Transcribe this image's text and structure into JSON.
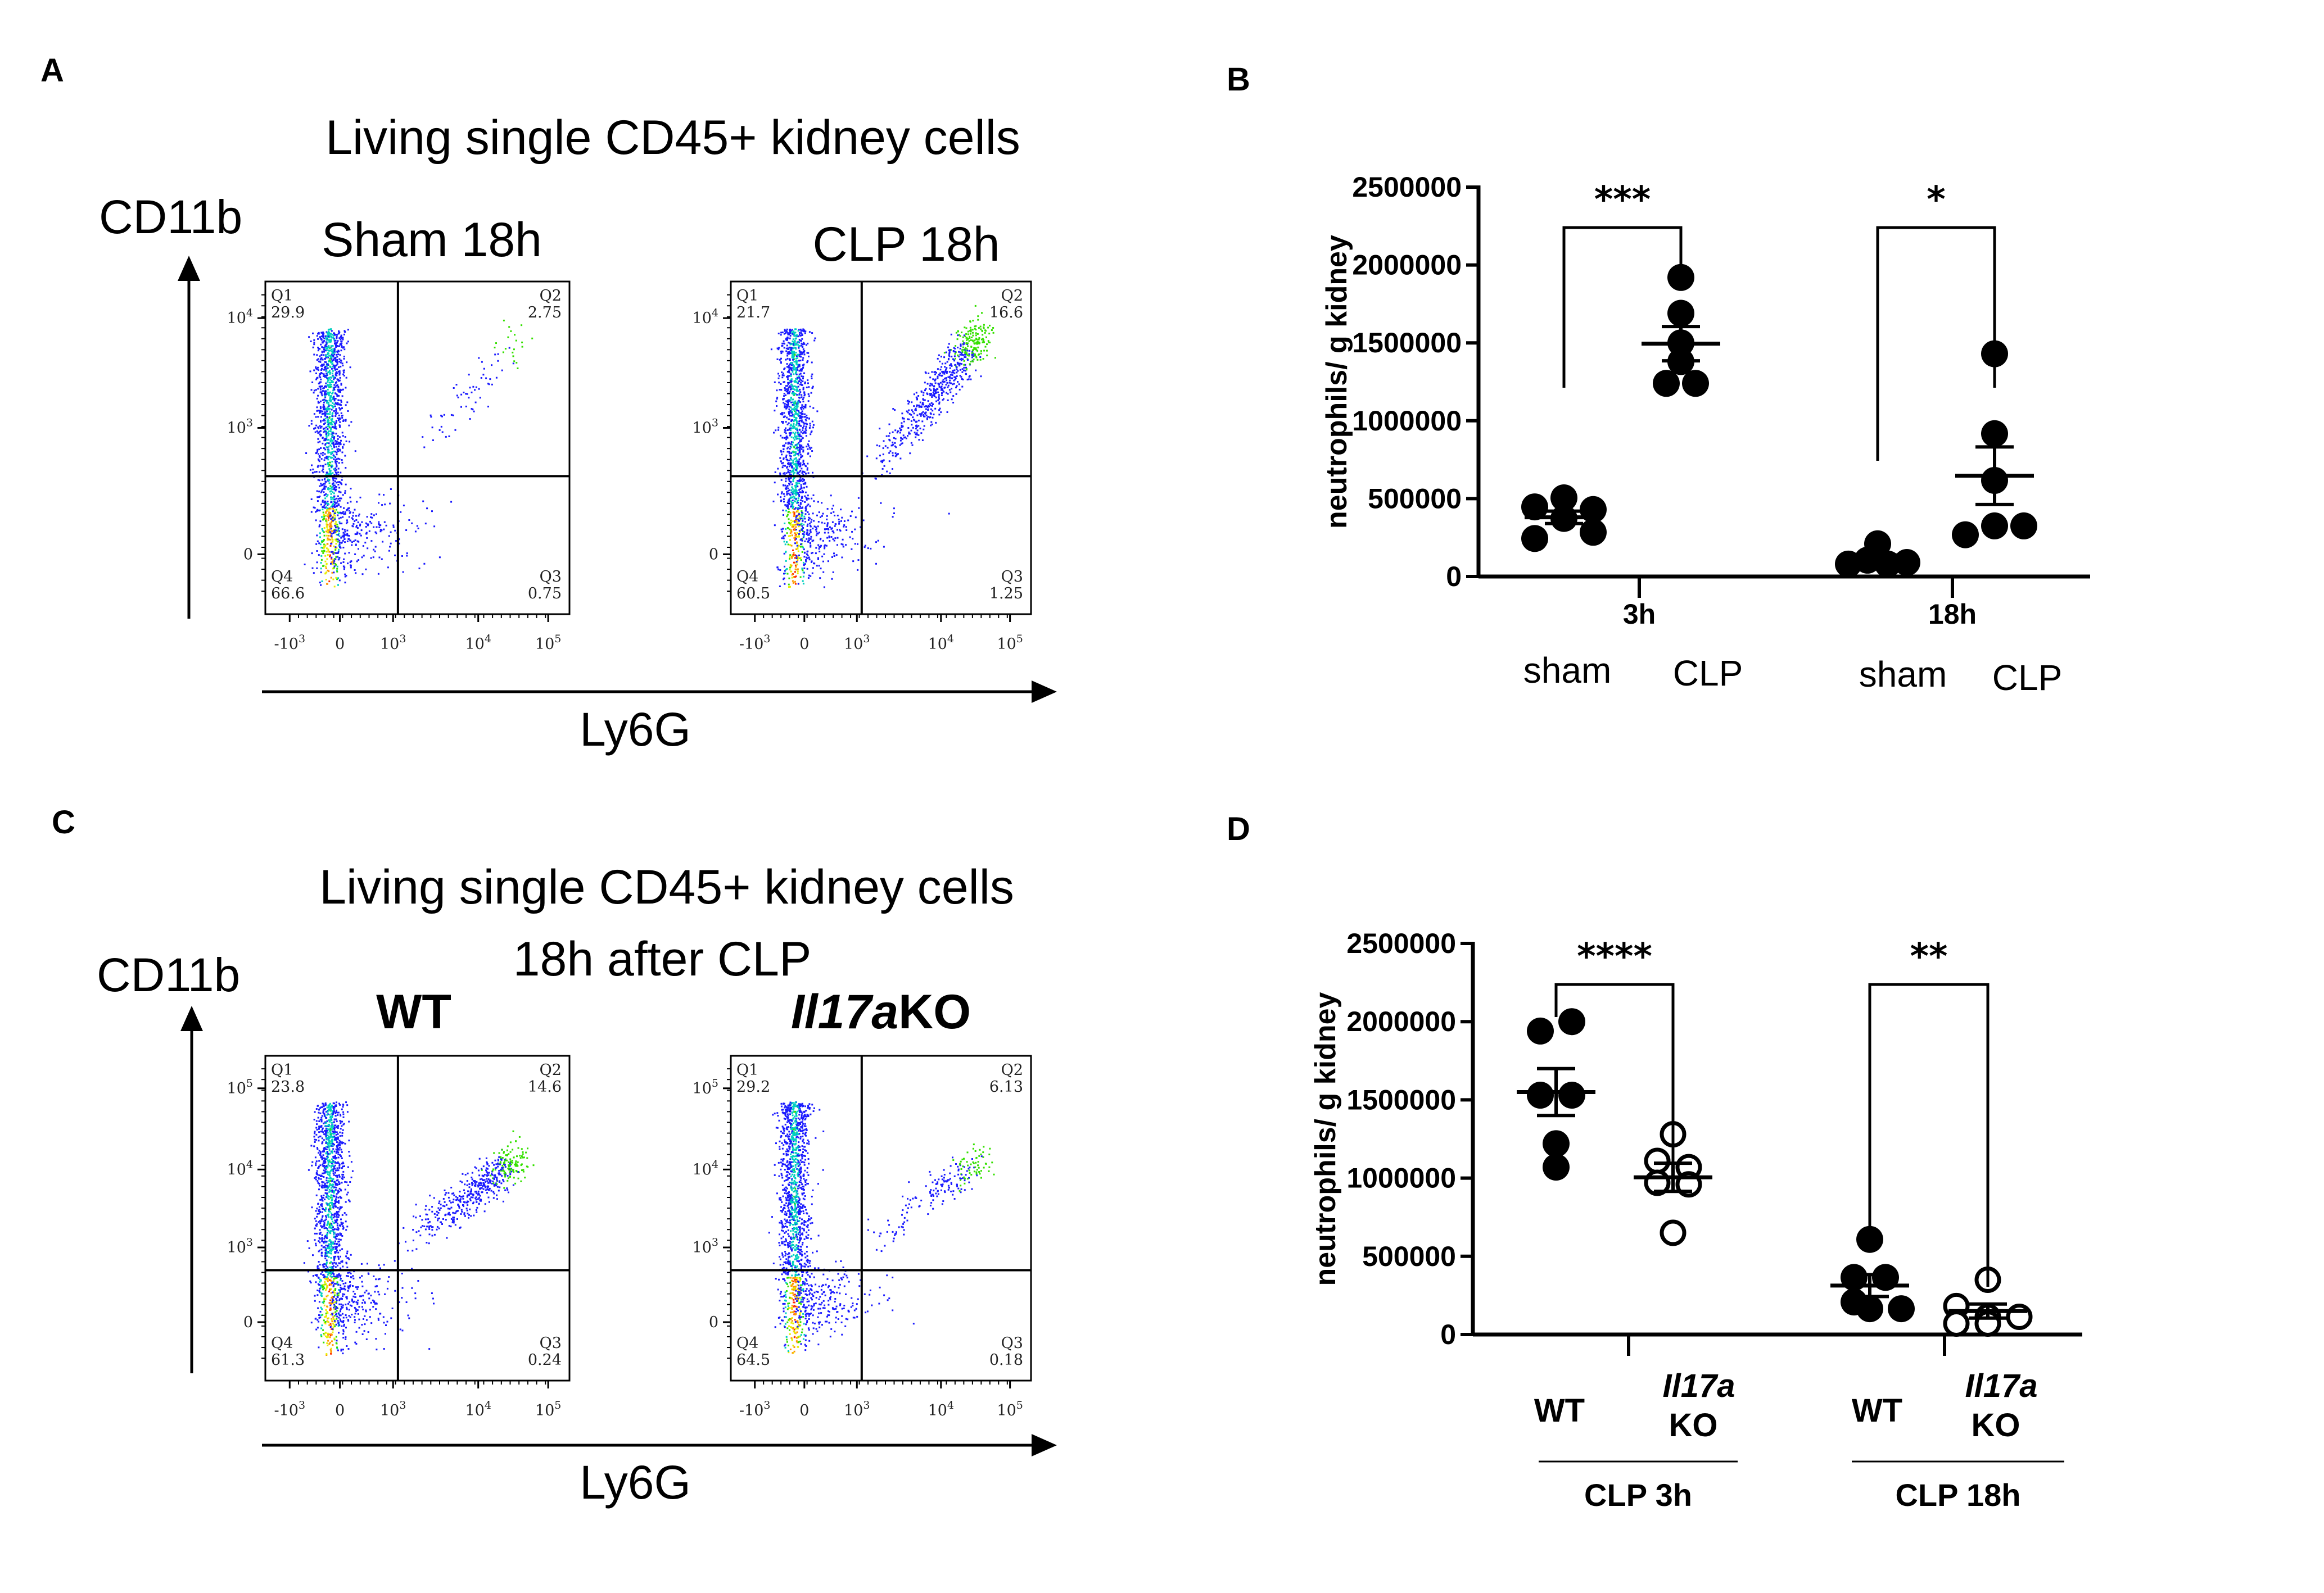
{
  "panels": {
    "A": {
      "letter": "A",
      "title": "Living single CD45+ kidney cells",
      "y_axis_label": "CD11b",
      "x_axis_label": "Ly6G",
      "plots": [
        {
          "title": "Sham 18h",
          "quadrants": {
            "Q1": "29.9",
            "Q2": "2.75",
            "Q3": "0.75",
            "Q4": "66.6"
          }
        },
        {
          "title": "CLP 18h",
          "quadrants": {
            "Q1": "21.7",
            "Q2": "16.6",
            "Q3": "1.25",
            "Q4": "60.5"
          }
        }
      ]
    },
    "C": {
      "letter": "C",
      "title": "Living single CD45+ kidney cells",
      "subtitle": "18h after CLP",
      "y_axis_label": "CD11b",
      "x_axis_label": "Ly6G",
      "plots": [
        {
          "title": "WT",
          "title_italic_part": "",
          "quadrants": {
            "Q1": "23.8",
            "Q2": "14.6",
            "Q3": "0.24",
            "Q4": "61.3"
          }
        },
        {
          "title": "KO",
          "title_italic_part": "Il17a",
          "quadrants": {
            "Q1": "29.2",
            "Q2": "6.13",
            "Q3": "0.18",
            "Q4": "64.5"
          }
        }
      ]
    },
    "B": {
      "letter": "B"
    },
    "D": {
      "letter": "D"
    }
  },
  "flow_axes": {
    "x_ticks": [
      "-10^3",
      "0",
      "10^3",
      "10^4",
      "10^5"
    ],
    "y_ticks_A": [
      "0",
      "10^3",
      "10^4"
    ],
    "y_ticks_C": [
      "0",
      "10^3",
      "10^4",
      "10^5"
    ],
    "quadrant_names": [
      "Q1",
      "Q2",
      "Q3",
      "Q4"
    ]
  },
  "chart_data": [
    {
      "type": "scatter",
      "panel": "B",
      "title": "",
      "ylabel": "neutrophils/ g kidney",
      "xlabel": "",
      "ylim": [
        0,
        2500000
      ],
      "yticks": [
        0,
        500000,
        1000000,
        1500000,
        2000000,
        2500000
      ],
      "ytick_labels": [
        "0",
        "500000",
        "1000000",
        "1500000",
        "2000000",
        "2500000"
      ],
      "groups": [
        {
          "name": "3h",
          "categories": [
            "sham",
            "CLP"
          ]
        },
        {
          "name": "18h",
          "categories": [
            "sham",
            "CLP"
          ]
        }
      ],
      "series": [
        {
          "name": "3h sham",
          "marker": "filled",
          "values": [
            447000,
            505000,
            430000,
            244000,
            284000,
            373000
          ],
          "mean": 380000,
          "sem": 40000
        },
        {
          "name": "3h CLP",
          "marker": "filled",
          "values": [
            1920000,
            1690000,
            1500000,
            1380000,
            1240000,
            1240000
          ],
          "mean": 1495000,
          "sem": 110000
        },
        {
          "name": "18h sham",
          "marker": "filled",
          "values": [
            210000,
            80000,
            105000,
            80000,
            90000
          ],
          "mean": 113000,
          "sem": 25000
        },
        {
          "name": "18h CLP",
          "marker": "filled",
          "values": [
            1430000,
            917000,
            617000,
            268000,
            325000,
            325000
          ],
          "mean": 647000,
          "sem": 185000
        }
      ],
      "significance": [
        {
          "between": [
            "3h sham",
            "3h CLP"
          ],
          "label": "***"
        },
        {
          "between": [
            "18h sham",
            "18h CLP"
          ],
          "label": "*"
        }
      ]
    },
    {
      "type": "scatter",
      "panel": "D",
      "title": "",
      "ylabel": "neutrophils/ g kidney",
      "xlabel": "",
      "ylim": [
        0,
        2500000
      ],
      "yticks": [
        0,
        500000,
        1000000,
        1500000,
        2000000,
        2500000
      ],
      "ytick_labels": [
        "0",
        "500000",
        "1000000",
        "1500000",
        "2000000",
        "2500000"
      ],
      "groups": [
        {
          "name": "CLP 3h",
          "categories": [
            "WT",
            "Il17a KO"
          ]
        },
        {
          "name": "CLP 18h",
          "categories": [
            "WT",
            "Il17a KO"
          ]
        }
      ],
      "series": [
        {
          "name": "CLP 3h WT",
          "marker": "filled",
          "values": [
            1940000,
            2000000,
            1530000,
            1530000,
            1220000,
            1070000
          ],
          "mean": 1550000,
          "sem": 150000
        },
        {
          "name": "CLP 3h Il17a KO",
          "marker": "open",
          "values": [
            1280000,
            1110000,
            1070000,
            970000,
            960000,
            650000
          ],
          "mean": 1005000,
          "sem": 90000
        },
        {
          "name": "CLP 18h WT",
          "marker": "filled",
          "values": [
            608000,
            365000,
            365000,
            208000,
            165000,
            165000
          ],
          "mean": 313000,
          "sem": 70000
        },
        {
          "name": "CLP 18h Il17a KO",
          "marker": "open",
          "values": [
            350000,
            182000,
            70000,
            113000,
            70000,
            113000
          ],
          "mean": 150000,
          "sem": 45000
        }
      ],
      "significance": [
        {
          "between": [
            "CLP 3h WT",
            "CLP 3h Il17a KO"
          ],
          "label": "****"
        },
        {
          "between": [
            "CLP 18h WT",
            "CLP 18h Il17a KO"
          ],
          "label": "**"
        }
      ],
      "category_labels": {
        "wt": "WT",
        "ko_italic": "Il17a",
        "ko": "KO"
      }
    }
  ]
}
